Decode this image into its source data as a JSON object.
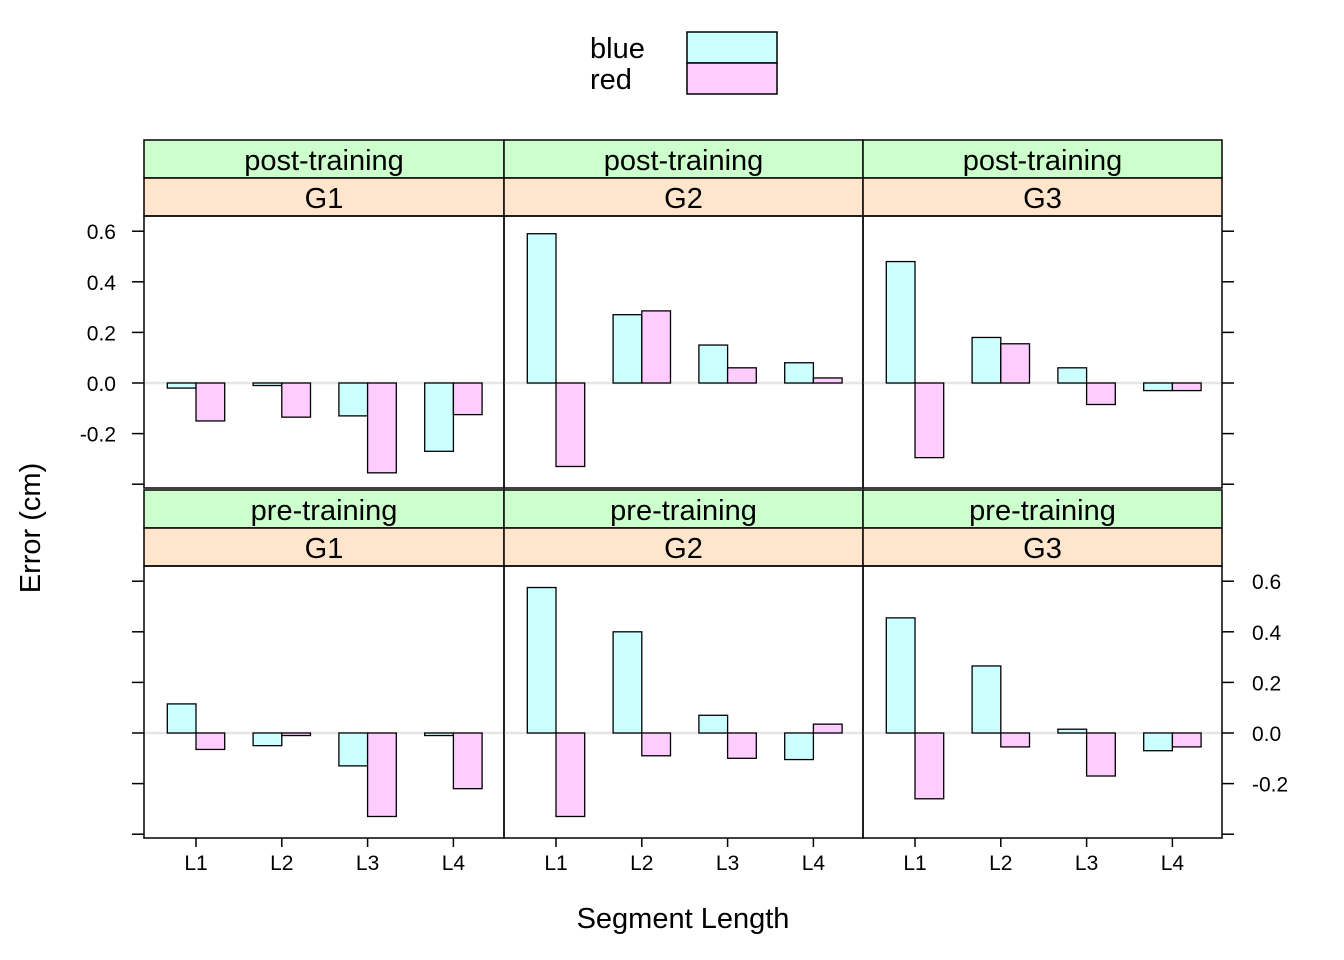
{
  "chart_data": {
    "type": "bar",
    "xlabel": "Segment Length",
    "ylabel": "Error (cm)",
    "categories": [
      "L1",
      "L2",
      "L3",
      "L4"
    ],
    "y_ticks": [
      -0.2,
      0.0,
      0.2,
      0.4,
      0.6
    ],
    "y_tick_labels": [
      "-0.2",
      "0.0",
      "0.2",
      "0.4",
      "0.6"
    ],
    "ylim": [
      -0.4,
      0.6
    ],
    "colors": {
      "blue": "#ccffff",
      "red": "#ffccff",
      "strip_condition": "#ccffcc",
      "strip_group": "#ffe5cc",
      "zero_line": "#e6e6e6"
    },
    "legend": {
      "position": "top",
      "entries": [
        {
          "label": "blue",
          "color": "#ccffff"
        },
        {
          "label": "red",
          "color": "#ffccff"
        }
      ]
    },
    "panels": [
      {
        "condition": "post-training",
        "group": "G1",
        "row": 0,
        "col": 0,
        "series": [
          {
            "name": "blue",
            "values": [
              -0.02,
              -0.01,
              -0.13,
              -0.27
            ]
          },
          {
            "name": "red",
            "values": [
              -0.15,
              -0.135,
              -0.355,
              -0.125
            ]
          }
        ]
      },
      {
        "condition": "post-training",
        "group": "G2",
        "row": 0,
        "col": 1,
        "series": [
          {
            "name": "blue",
            "values": [
              0.59,
              0.27,
              0.15,
              0.08
            ]
          },
          {
            "name": "red",
            "values": [
              -0.33,
              0.285,
              0.06,
              0.02
            ]
          }
        ]
      },
      {
        "condition": "post-training",
        "group": "G3",
        "row": 0,
        "col": 2,
        "series": [
          {
            "name": "blue",
            "values": [
              0.48,
              0.18,
              0.06,
              -0.03
            ]
          },
          {
            "name": "red",
            "values": [
              -0.295,
              0.155,
              -0.085,
              -0.03
            ]
          }
        ]
      },
      {
        "condition": "pre-training",
        "group": "G1",
        "row": 1,
        "col": 0,
        "series": [
          {
            "name": "blue",
            "values": [
              0.115,
              -0.05,
              -0.13,
              -0.01
            ]
          },
          {
            "name": "red",
            "values": [
              -0.065,
              -0.01,
              -0.33,
              -0.22
            ]
          }
        ]
      },
      {
        "condition": "pre-training",
        "group": "G2",
        "row": 1,
        "col": 1,
        "series": [
          {
            "name": "blue",
            "values": [
              0.575,
              0.4,
              0.07,
              -0.105
            ]
          },
          {
            "name": "red",
            "values": [
              -0.33,
              -0.09,
              -0.1,
              0.035
            ]
          }
        ]
      },
      {
        "condition": "pre-training",
        "group": "G3",
        "row": 1,
        "col": 2,
        "series": [
          {
            "name": "blue",
            "values": [
              0.455,
              0.265,
              0.015,
              -0.07
            ]
          },
          {
            "name": "red",
            "values": [
              -0.26,
              -0.055,
              -0.17,
              -0.055
            ]
          }
        ]
      }
    ]
  }
}
